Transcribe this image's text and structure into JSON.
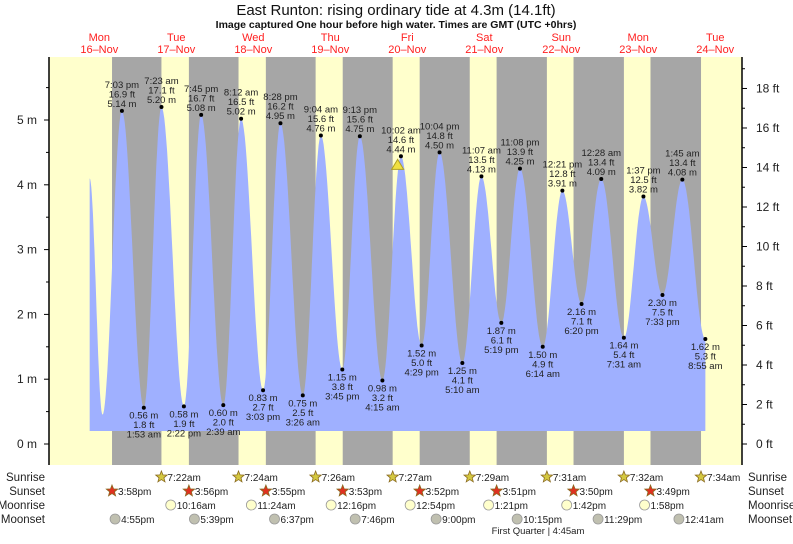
{
  "chart_data": {
    "type": "area",
    "title": "East Runton: rising  ordinary tide at 4.3m (14.1ft)",
    "subtitle": "Image captured One hour before high water. Times are GMT (UTC +0hrs)",
    "time_unit": "hours since Mon 16-Nov 00:00",
    "days": [
      {
        "dow": "Mon",
        "date": "16–Nov"
      },
      {
        "dow": "Tue",
        "date": "17–Nov"
      },
      {
        "dow": "Wed",
        "date": "18–Nov"
      },
      {
        "dow": "Thu",
        "date": "19–Nov"
      },
      {
        "dow": "Fri",
        "date": "20–Nov"
      },
      {
        "dow": "Sat",
        "date": "21–Nov"
      },
      {
        "dow": "Sun",
        "date": "22–Nov"
      },
      {
        "dow": "Mon",
        "date": "23–Nov"
      },
      {
        "dow": "Tue",
        "date": "24–Nov"
      }
    ],
    "y_left": {
      "unit": "m",
      "ticks": [
        "0 m",
        "1 m",
        "2 m",
        "3 m",
        "4 m",
        "5 m"
      ],
      "range": [
        -0.3,
        5.9
      ]
    },
    "y_right": {
      "unit": "ft",
      "ticks": [
        "0 ft",
        "2 ft",
        "4 ft",
        "6 ft",
        "8 ft",
        "10 ft",
        "12 ft",
        "14 ft",
        "16 ft",
        "18 ft"
      ]
    },
    "curve_start": {
      "t": 9.0,
      "m": 4.1
    },
    "unlabeled_extremes": [
      {
        "t": 13.0,
        "m": 0.45,
        "type": "low"
      }
    ],
    "extremes": [
      {
        "type": "high",
        "t": 19.05,
        "m": 5.14,
        "time": "7:03 pm",
        "ft": "16.9 ft",
        "ml": "5.14 m"
      },
      {
        "type": "low",
        "t": 25.88,
        "m": 0.56,
        "time": "1:53 am",
        "ft": "1.8 ft",
        "ml": "0.56 m"
      },
      {
        "type": "high",
        "t": 31.38,
        "m": 5.2,
        "time": "7:23 am",
        "ft": "17.1 ft",
        "ml": "5.20 m"
      },
      {
        "type": "low",
        "t": 38.37,
        "m": 0.58,
        "time": "2:22 pm",
        "ft": "1.9 ft",
        "ml": "0.58 m"
      },
      {
        "type": "high",
        "t": 43.75,
        "m": 5.08,
        "time": "7:45 pm",
        "ft": "16.7 ft",
        "ml": "5.08 m"
      },
      {
        "type": "low",
        "t": 50.65,
        "m": 0.6,
        "time": "2:39 am",
        "ft": "2.0 ft",
        "ml": "0.60 m"
      },
      {
        "type": "high",
        "t": 56.2,
        "m": 5.02,
        "time": "8:12 am",
        "ft": "16.5 ft",
        "ml": "5.02 m"
      },
      {
        "type": "low",
        "t": 63.05,
        "m": 0.83,
        "time": "3:03 pm",
        "ft": "2.7 ft",
        "ml": "0.83 m"
      },
      {
        "type": "high",
        "t": 68.47,
        "m": 4.95,
        "time": "8:28 pm",
        "ft": "16.2 ft",
        "ml": "4.95 m"
      },
      {
        "type": "low",
        "t": 75.43,
        "m": 0.75,
        "time": "3:26 am",
        "ft": "2.5 ft",
        "ml": "0.75 m"
      },
      {
        "type": "high",
        "t": 81.07,
        "m": 4.76,
        "time": "9:04 am",
        "ft": "15.6 ft",
        "ml": "4.76 m"
      },
      {
        "type": "low",
        "t": 87.75,
        "m": 1.15,
        "time": "3:45 pm",
        "ft": "3.8 ft",
        "ml": "1.15 m"
      },
      {
        "type": "high",
        "t": 93.22,
        "m": 4.75,
        "time": "9:13 pm",
        "ft": "15.6 ft",
        "ml": "4.75 m"
      },
      {
        "type": "low",
        "t": 100.25,
        "m": 0.98,
        "time": "4:15 am",
        "ft": "3.2 ft",
        "ml": "0.98 m"
      },
      {
        "type": "high",
        "t": 106.03,
        "m": 4.44,
        "time": "10:02 am",
        "ft": "14.6 ft",
        "ml": "4.44 m"
      },
      {
        "type": "low",
        "t": 112.48,
        "m": 1.52,
        "time": "4:29 pm",
        "ft": "5.0 ft",
        "ml": "1.52 m"
      },
      {
        "type": "high",
        "t": 118.07,
        "m": 4.5,
        "time": "10:04 pm",
        "ft": "14.8 ft",
        "ml": "4.50 m"
      },
      {
        "type": "low",
        "t": 125.17,
        "m": 1.25,
        "time": "5:10 am",
        "ft": "4.1 ft",
        "ml": "1.25 m"
      },
      {
        "type": "high",
        "t": 131.12,
        "m": 4.13,
        "time": "11:07 am",
        "ft": "13.5 ft",
        "ml": "4.13 m"
      },
      {
        "type": "low",
        "t": 137.32,
        "m": 1.87,
        "time": "5:19 pm",
        "ft": "6.1 ft",
        "ml": "1.87 m"
      },
      {
        "type": "high",
        "t": 143.13,
        "m": 4.25,
        "time": "11:08 pm",
        "ft": "13.9 ft",
        "ml": "4.25 m"
      },
      {
        "type": "low",
        "t": 150.23,
        "m": 1.5,
        "time": "6:14 am",
        "ft": "4.9 ft",
        "ml": "1.50 m"
      },
      {
        "type": "high",
        "t": 156.35,
        "m": 3.91,
        "time": "12:21 pm",
        "ft": "12.8 ft",
        "ml": "3.91 m"
      },
      {
        "type": "low",
        "t": 162.33,
        "m": 2.16,
        "time": "6:20 pm",
        "ft": "7.1 ft",
        "ml": "2.16 m"
      },
      {
        "type": "high",
        "t": 168.47,
        "m": 4.09,
        "time": "12:28 am",
        "ft": "13.4 ft",
        "ml": "4.09 m"
      },
      {
        "type": "low",
        "t": 175.52,
        "m": 1.64,
        "time": "7:31 am",
        "ft": "5.4 ft",
        "ml": "1.64 m"
      },
      {
        "type": "high",
        "t": 181.62,
        "m": 3.82,
        "time": "1:37 pm",
        "ft": "12.5 ft",
        "ml": "3.82 m"
      },
      {
        "type": "low",
        "t": 187.55,
        "m": 2.3,
        "time": "7:33 pm",
        "ft": "7.5 ft",
        "ml": "2.30 m"
      },
      {
        "type": "high",
        "t": 193.75,
        "m": 4.08,
        "time": "1:45 am",
        "ft": "13.4 ft",
        "ml": "4.08 m"
      },
      {
        "type": "low",
        "t": 200.92,
        "m": 1.62,
        "time": "8:55 am",
        "ft": "5.3 ft",
        "ml": "1.62 m"
      }
    ],
    "current": {
      "t": 105.0,
      "m": 4.3,
      "state": "rising"
    },
    "rows": {
      "sunrise": {
        "label": "Sunrise",
        "events": [
          {
            "t": 31.37,
            "text": "7:22am"
          },
          {
            "t": 55.4,
            "text": "7:24am"
          },
          {
            "t": 79.43,
            "text": "7:26am"
          },
          {
            "t": 103.45,
            "text": "7:27am"
          },
          {
            "t": 127.48,
            "text": "7:29am"
          },
          {
            "t": 151.52,
            "text": "7:31am"
          },
          {
            "t": 175.53,
            "text": "7:32am"
          },
          {
            "t": 199.57,
            "text": "7:34am"
          }
        ]
      },
      "sunset": {
        "label": "Sunset",
        "events": [
          {
            "t": 15.97,
            "text": "3:58pm"
          },
          {
            "t": 39.93,
            "text": "3:56pm"
          },
          {
            "t": 63.92,
            "text": "3:55pm"
          },
          {
            "t": 87.88,
            "text": "3:53pm"
          },
          {
            "t": 111.87,
            "text": "3:52pm"
          },
          {
            "t": 135.85,
            "text": "3:51pm"
          },
          {
            "t": 159.83,
            "text": "3:50pm"
          },
          {
            "t": 183.82,
            "text": "3:49pm"
          }
        ]
      },
      "moonrise": {
        "label": "Moonrise",
        "events": [
          {
            "t": 34.27,
            "text": "10:16am"
          },
          {
            "t": 59.4,
            "text": "11:24am"
          },
          {
            "t": 84.27,
            "text": "12:16pm"
          },
          {
            "t": 108.9,
            "text": "12:54pm"
          },
          {
            "t": 133.35,
            "text": "1:21pm"
          },
          {
            "t": 157.7,
            "text": "1:42pm"
          },
          {
            "t": 181.97,
            "text": "1:58pm"
          }
        ]
      },
      "moonset": {
        "label": "Moonset",
        "events": [
          {
            "t": 16.92,
            "text": "4:55pm"
          },
          {
            "t": 41.65,
            "text": "5:39pm"
          },
          {
            "t": 66.62,
            "text": "6:37pm"
          },
          {
            "t": 91.77,
            "text": "7:46pm"
          },
          {
            "t": 117.0,
            "text": "9:00pm"
          },
          {
            "t": 142.25,
            "text": "10:15pm"
          },
          {
            "t": 167.48,
            "text": "11:29pm"
          },
          {
            "t": 192.68,
            "text": "12:41am"
          }
        ]
      }
    },
    "moon_phase": "First Quarter | 4:45am",
    "colors": {
      "day": "#ffffcc",
      "night": "#a6a6a6",
      "water": "#9fb0ff",
      "day_label": "#ff2020",
      "sunrise_icon": "#d4c840",
      "sunset_icon": "#e03020",
      "moonrise_icon": "#ffffcc",
      "moonset_icon": "#c0c0b0"
    }
  }
}
